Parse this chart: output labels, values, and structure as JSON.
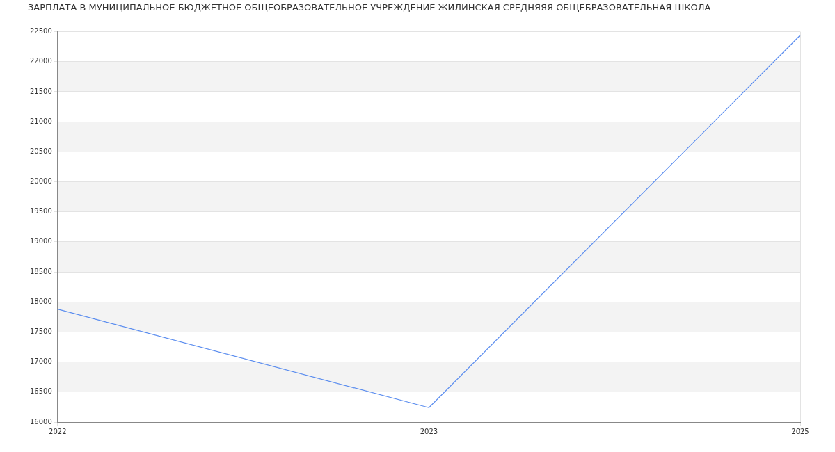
{
  "chart_data": {
    "type": "line",
    "title": "ЗАРПЛАТА В МУНИЦИПАЛЬНОЕ БЮДЖЕТНОЕ ОБЩЕОБРАЗОВАТЕЛЬНОЕ УЧРЕЖДЕНИЕ ЖИЛИНСКАЯ СРЕДНЯЯЯ ОБЩЕБРАЗОВАТЕЛЬНАЯ ШКОЛА",
    "categories": [
      "2022",
      "2023",
      "2025"
    ],
    "series": [
      {
        "color": "#5b8def",
        "values": [
          17880,
          16240,
          22440
        ]
      }
    ],
    "ylim": [
      16000,
      22500
    ],
    "yticks": [
      16000,
      16500,
      17000,
      17500,
      18000,
      18500,
      19000,
      19500,
      20000,
      20500,
      21000,
      21500,
      22000,
      22500
    ],
    "grid": true,
    "marker": "none",
    "line_style": "solid",
    "legend": false
  }
}
